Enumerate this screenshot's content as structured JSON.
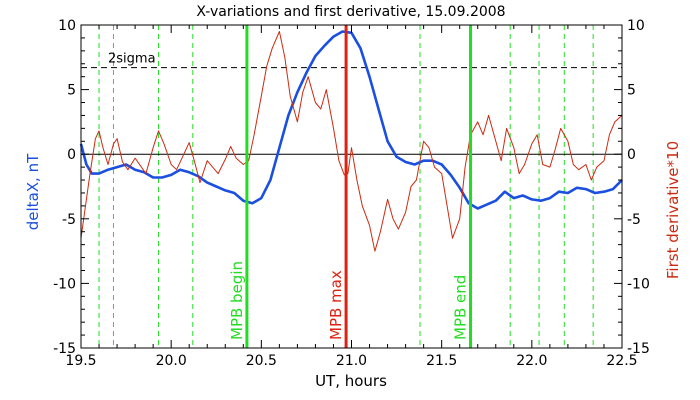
{
  "chart_data": {
    "type": "line",
    "title": "X-variations and first derivative, 15.09.2008",
    "xlabel": "UT, hours",
    "ylabel_left": "deltaX, nT",
    "ylabel_right": "First derivative*10",
    "xlim": [
      19.5,
      22.5
    ],
    "ylim_left": [
      -15,
      10
    ],
    "ylim_right": [
      -15,
      10
    ],
    "x_ticks": [
      "19.5",
      "20.0",
      "20.5",
      "21.0",
      "21.5",
      "22.0",
      "22.5"
    ],
    "y_ticks_left": [
      "10",
      "5",
      "0",
      "-5",
      "-10",
      "-15"
    ],
    "y_ticks_right": [
      "10",
      "5",
      "0",
      "-5",
      "-10",
      "-15"
    ],
    "grid": false,
    "colors": {
      "deltaX": "#1a4fe0",
      "derivative": "#cc2a10",
      "green_marker": "#22dd22",
      "red_marker": "#dd2211",
      "axis": "#000000",
      "right_axis_label": "#cc2a10",
      "left_axis_label": "#1a4fe0"
    },
    "sigma_line": {
      "label": "2sigma",
      "y": 6.7
    },
    "zero_line": {
      "y": 0
    },
    "minor_event_x": [
      19.6,
      19.68,
      19.93,
      20.12,
      21.38,
      21.88,
      22.04,
      22.18,
      22.34
    ],
    "markers": [
      {
        "label": "MPB begin",
        "x": 20.42,
        "color": "green"
      },
      {
        "label": "MPB max",
        "x": 20.97,
        "color": "red"
      },
      {
        "label": "MPB end",
        "x": 21.66,
        "color": "green"
      }
    ],
    "series": [
      {
        "axis": "left",
        "x": [
          19.5,
          19.53,
          19.56,
          19.6,
          19.65,
          19.7,
          19.75,
          19.8,
          19.85,
          19.9,
          19.95,
          20.0,
          20.05,
          20.1,
          20.15,
          20.2,
          20.25,
          20.3,
          20.35,
          20.4,
          20.45,
          20.5,
          20.55,
          20.6,
          20.65,
          20.7,
          20.75,
          20.8,
          20.85,
          20.9,
          20.95,
          21.0,
          21.05,
          21.1,
          21.15,
          21.2,
          21.25,
          21.3,
          21.35,
          21.4,
          21.45,
          21.5,
          21.55,
          21.6,
          21.65,
          21.7,
          21.75,
          21.8,
          21.85,
          21.9,
          21.95,
          22.0,
          22.05,
          22.1,
          22.15,
          22.2,
          22.25,
          22.3,
          22.35,
          22.4,
          22.45,
          22.5
        ],
        "values": [
          0.8,
          -0.8,
          -1.5,
          -1.5,
          -1.2,
          -1.0,
          -0.8,
          -1.2,
          -1.4,
          -1.8,
          -1.8,
          -1.6,
          -1.2,
          -1.4,
          -1.7,
          -2.2,
          -2.5,
          -2.8,
          -3.0,
          -3.6,
          -3.8,
          -3.4,
          -2.0,
          0.5,
          3.0,
          4.8,
          6.3,
          7.6,
          8.4,
          9.1,
          9.5,
          9.4,
          8.2,
          6.0,
          3.5,
          1.0,
          -0.2,
          -0.6,
          -0.8,
          -0.5,
          -0.5,
          -0.8,
          -1.6,
          -2.6,
          -3.8,
          -4.2,
          -3.9,
          -3.6,
          -2.9,
          -3.4,
          -3.2,
          -3.5,
          -3.6,
          -3.4,
          -2.9,
          -3.0,
          -2.6,
          -2.7,
          -3.0,
          -2.9,
          -2.7,
          -2.0
        ]
      },
      {
        "axis": "right",
        "x": [
          19.5,
          19.52,
          19.55,
          19.58,
          19.6,
          19.62,
          19.65,
          19.68,
          19.7,
          19.73,
          19.76,
          19.8,
          19.83,
          19.86,
          19.9,
          19.93,
          19.96,
          20.0,
          20.03,
          20.06,
          20.1,
          20.13,
          20.16,
          20.2,
          20.23,
          20.26,
          20.3,
          20.33,
          20.36,
          20.4,
          20.43,
          20.46,
          20.5,
          20.53,
          20.56,
          20.6,
          20.63,
          20.66,
          20.7,
          20.73,
          20.76,
          20.8,
          20.83,
          20.86,
          20.9,
          20.93,
          20.96,
          20.98,
          21.0,
          21.03,
          21.06,
          21.1,
          21.13,
          21.16,
          21.2,
          21.23,
          21.26,
          21.3,
          21.33,
          21.36,
          21.4,
          21.43,
          21.46,
          21.5,
          21.53,
          21.56,
          21.6,
          21.63,
          21.66,
          21.7,
          21.73,
          21.76,
          21.8,
          21.83,
          21.86,
          21.9,
          21.93,
          21.96,
          22.0,
          22.03,
          22.06,
          22.1,
          22.13,
          22.16,
          22.2,
          22.23,
          22.26,
          22.3,
          22.33,
          22.36,
          22.4,
          22.43,
          22.46,
          22.5
        ],
        "values": [
          -6.5,
          -4.5,
          -1.5,
          1.2,
          1.8,
          0.6,
          -0.8,
          0.8,
          1.2,
          -0.6,
          -1.2,
          -0.3,
          -0.9,
          -1.5,
          0.5,
          1.8,
          0.8,
          -0.8,
          -1.2,
          -0.3,
          0.9,
          -0.6,
          -2.2,
          -0.5,
          -1.0,
          -1.5,
          -0.4,
          0.6,
          -0.3,
          -0.8,
          -0.5,
          1.5,
          4.5,
          6.8,
          8.2,
          9.5,
          7.5,
          4.5,
          2.5,
          4.8,
          6.0,
          4.0,
          3.5,
          5.0,
          2.0,
          -0.5,
          -1.6,
          -1.5,
          0.5,
          -2.0,
          -4.0,
          -5.5,
          -7.5,
          -6.0,
          -3.5,
          -5.0,
          -5.8,
          -4.5,
          -2.5,
          -2.0,
          1.0,
          0.5,
          -1.0,
          -1.5,
          -4.0,
          -6.5,
          -5.0,
          -1.0,
          1.5,
          2.5,
          1.5,
          3.0,
          1.0,
          -0.5,
          2.0,
          0.5,
          -1.5,
          -0.8,
          0.8,
          1.5,
          -0.8,
          -1.0,
          0.4,
          2.0,
          1.0,
          -0.8,
          -1.2,
          -0.8,
          -2.0,
          -1.0,
          -0.5,
          1.5,
          2.5,
          3.0
        ]
      }
    ]
  }
}
